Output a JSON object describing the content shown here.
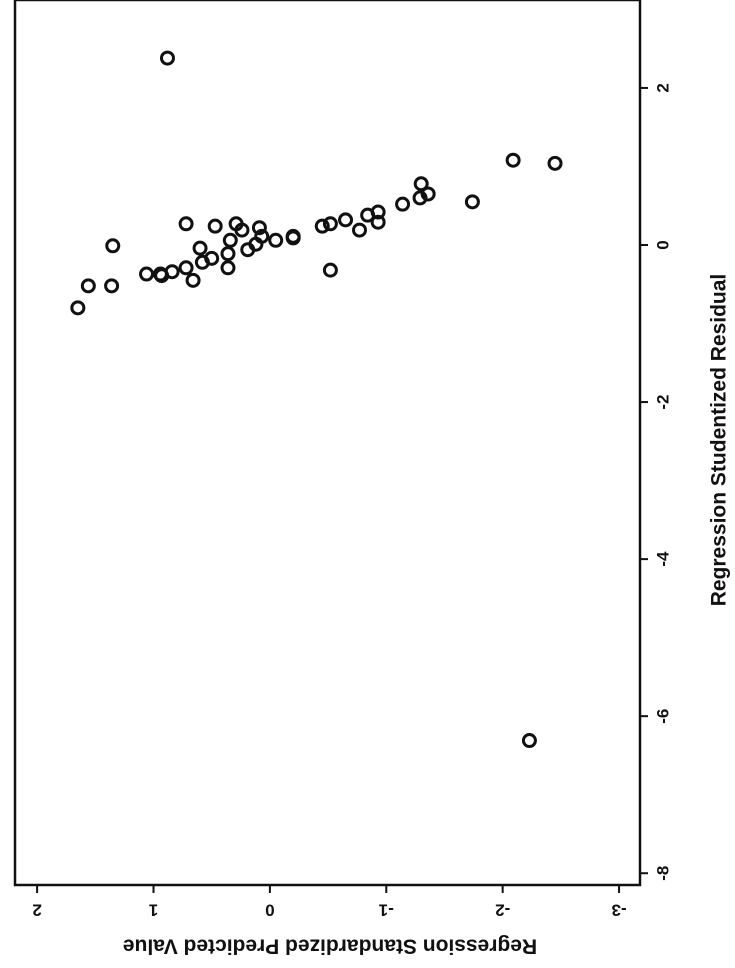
{
  "chart_data": {
    "type": "scatter",
    "x_label": "Regression Studentized Residual",
    "y_label": "Regression Standardized Predicted Value",
    "x": [
      2.38,
      -6.31,
      1.08,
      1.04,
      0.65,
      0.78,
      0.6,
      0.55,
      0.52,
      0.42,
      0.38,
      0.29,
      0.19,
      0.32,
      0.27,
      0.24,
      -0.32,
      0.11,
      0.09,
      0.06,
      0.22,
      0.11,
      0.01,
      -0.06,
      0.19,
      0.27,
      0.06,
      -0.11,
      -0.29,
      0.24,
      0.27,
      -0.04,
      -0.22,
      -0.17,
      -0.45,
      -0.29,
      -0.34,
      -0.37,
      -0.37,
      -0.01,
      -0.52,
      -0.52,
      -0.8,
      -0.39
    ],
    "values": [
      0.88,
      -2.23,
      -2.09,
      -2.45,
      -1.36,
      -1.3,
      -1.29,
      -1.74,
      -1.14,
      -0.93,
      -0.84,
      -0.93,
      -0.77,
      -0.65,
      -0.52,
      -0.45,
      -0.52,
      -0.2,
      -0.2,
      -0.05,
      0.09,
      0.07,
      0.12,
      0.19,
      0.24,
      0.29,
      0.34,
      0.36,
      0.36,
      0.47,
      0.72,
      0.6,
      0.58,
      0.5,
      0.66,
      0.72,
      0.84,
      0.94,
      1.06,
      1.35,
      1.36,
      1.56,
      1.65,
      0.93
    ],
    "color": "#111111",
    "xlim": [
      3.12,
      -8.15
    ],
    "xticks": [
      2,
      0,
      -2,
      -4,
      -6,
      -8
    ],
    "ylim": [
      2.19,
      -3.18
    ],
    "yticks": [
      2,
      1,
      0,
      -1,
      -2,
      -3
    ],
    "grid": false
  }
}
